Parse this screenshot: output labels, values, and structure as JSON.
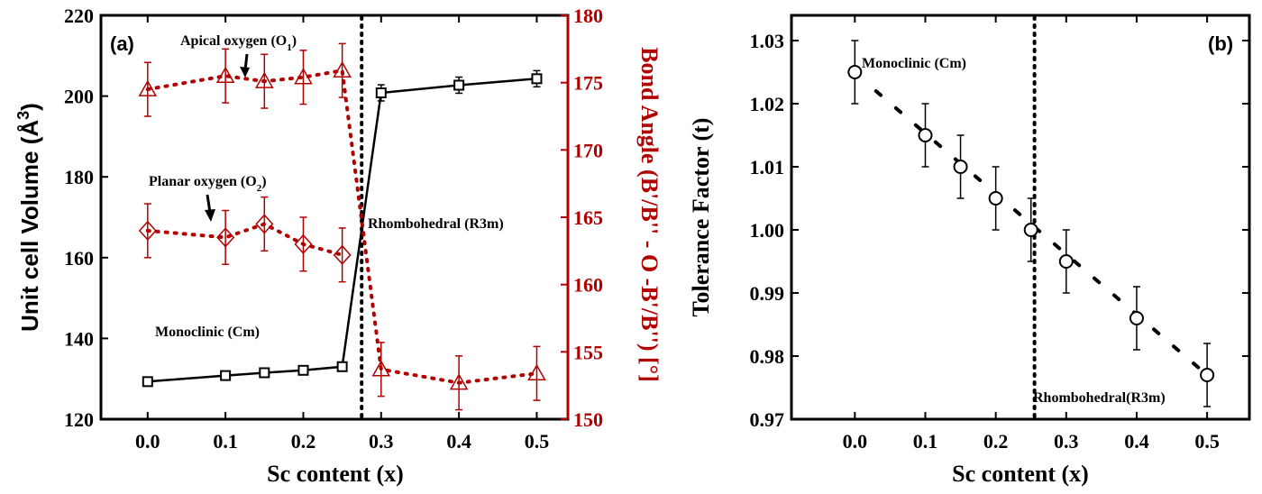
{
  "chart_data": [
    {
      "panel": "(a)",
      "type": "line",
      "x": [
        0.0,
        0.1,
        0.15,
        0.2,
        0.25,
        0.3,
        0.4,
        0.5
      ],
      "xlabel": "Sc content (x)",
      "xlim": [
        -0.06,
        0.54
      ],
      "xticks": [
        "0.0",
        "0.1",
        "0.2",
        "0.3",
        "0.4",
        "0.5"
      ],
      "ylabel": "Unit cell Volume (Å",
      "ylabel_sup": "3",
      "ylabel_end": ")",
      "ylim": [
        120,
        220
      ],
      "yticks": [
        "120",
        "140",
        "160",
        "180",
        "200",
        "220"
      ],
      "y2label": "Bond Angle (B'/B'' - O -B'/B'') [°]",
      "y2lim": [
        150,
        180
      ],
      "y2ticks": [
        "150",
        "155",
        "160",
        "165",
        "170",
        "175",
        "180"
      ],
      "series": [
        {
          "axis": "left",
          "marker": "square",
          "color": "#000000",
          "x": [
            0.0,
            0.1,
            0.15,
            0.2,
            0.25,
            0.3,
            0.4,
            0.5
          ],
          "values": [
            129.3,
            130.8,
            131.5,
            132.1,
            133.0,
            200.8,
            202.7,
            204.3
          ],
          "err": [
            0.5,
            0.5,
            0.5,
            0.5,
            0.5,
            2.0,
            2.0,
            2.0
          ]
        },
        {
          "axis": "right",
          "marker": "triangle",
          "color": "#b00000",
          "x": [
            0.0,
            0.1,
            0.15,
            0.2,
            0.25,
            0.3,
            0.4,
            0.5
          ],
          "values": [
            174.5,
            175.5,
            175.1,
            175.4,
            175.9,
            153.7,
            152.7,
            153.4
          ],
          "err": [
            2.0,
            2.0,
            2.0,
            2.0,
            2.0,
            2.0,
            2.0,
            2.0
          ]
        },
        {
          "axis": "right",
          "marker": "diamond",
          "color": "#b00000",
          "x": [
            0.0,
            0.1,
            0.15,
            0.2,
            0.25
          ],
          "values": [
            164.0,
            163.5,
            164.5,
            163.0,
            162.2
          ],
          "err": [
            2.0,
            2.0,
            2.0,
            2.0,
            2.0
          ]
        }
      ],
      "phase_boundary_x": 0.275,
      "annotations": {
        "apical": "Apical oxygen (O",
        "apical_sub": "1",
        "apical_end": ")",
        "planar": "Planar oxygen (O",
        "planar_sub": "2",
        "planar_end": ")",
        "rhombohedral": "Rhombohedral (R3m)",
        "monoclinic": "Monoclinic (Cm)"
      },
      "colors": {
        "left": "#000000",
        "right": "#b00000"
      }
    },
    {
      "panel": "(b)",
      "type": "scatter",
      "x": [
        0.0,
        0.1,
        0.15,
        0.2,
        0.25,
        0.3,
        0.4,
        0.5
      ],
      "values": [
        1.025,
        1.015,
        1.01,
        1.005,
        1.0,
        0.995,
        0.986,
        0.977
      ],
      "err": [
        0.005,
        0.005,
        0.005,
        0.005,
        0.005,
        0.005,
        0.005,
        0.005
      ],
      "xlabel": "Sc content (x)",
      "xlim": [
        -0.09,
        0.56
      ],
      "xticks": [
        "0.0",
        "0.1",
        "0.2",
        "0.3",
        "0.4",
        "0.5"
      ],
      "ylabel": "Tolerance Factor (t)",
      "ylim": [
        0.97,
        1.034
      ],
      "yticks": [
        "0.97",
        "0.98",
        "0.99",
        "1.00",
        "1.01",
        "1.02",
        "1.03"
      ],
      "trend": {
        "x": [
          0.03,
          0.5
        ],
        "y": [
          1.022,
          0.977
        ]
      },
      "phase_boundary_x": 0.255,
      "annotations": {
        "monoclinic": "Monoclinic (Cm)",
        "rhombohedral": "Rhombohedral(R3m)"
      }
    }
  ]
}
